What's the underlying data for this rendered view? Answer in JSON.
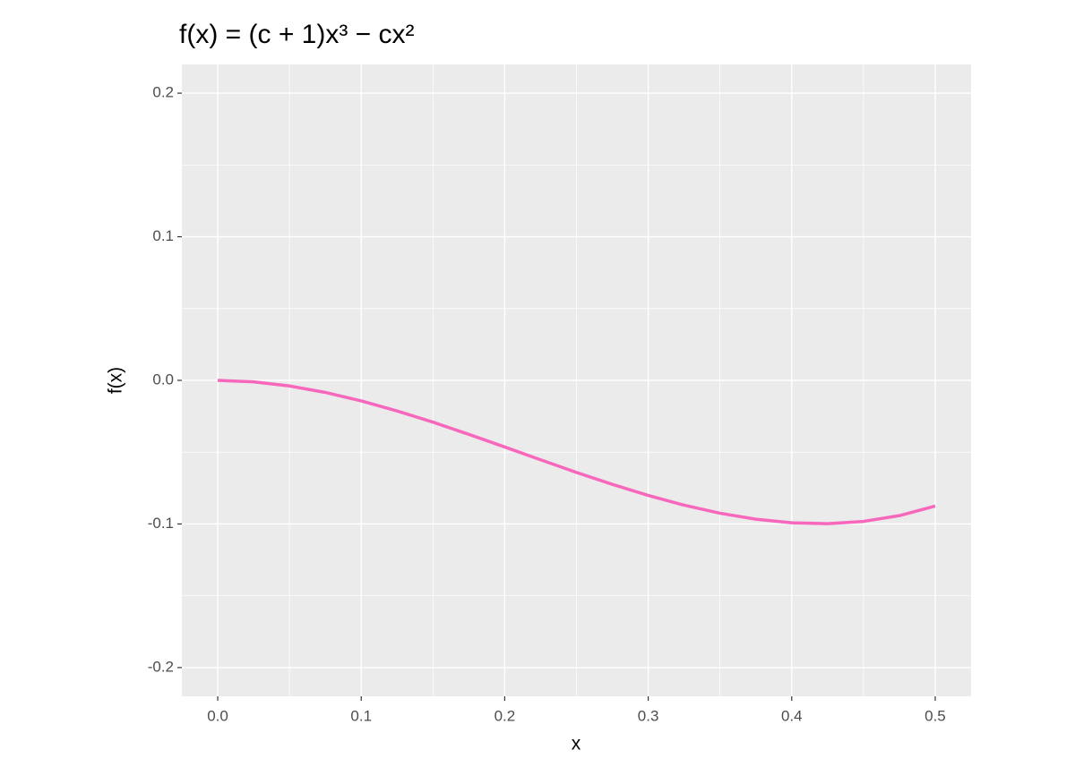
{
  "chart_data": {
    "type": "line",
    "title": "f(x) = (c + 1)x³ − cx²",
    "x_label": "x",
    "y_label": "f(x)",
    "x": [
      0,
      0.025,
      0.05,
      0.075,
      0.1,
      0.125,
      0.15,
      0.175,
      0.2,
      0.225,
      0.25,
      0.275,
      0.3,
      0.325,
      0.35,
      0.375,
      0.4,
      0.425,
      0.45,
      0.475,
      0.5
    ],
    "series": [
      {
        "color": "#f768bd",
        "values": [
          0,
          -0.001,
          -0.0039,
          -0.0084,
          -0.0143,
          -0.0213,
          -0.0291,
          -0.0376,
          -0.0464,
          -0.0553,
          -0.0641,
          -0.0724,
          -0.0801,
          -0.0869,
          -0.0925,
          -0.0967,
          -0.0992,
          -0.0998,
          -0.0982,
          -0.0942,
          -0.0875
        ]
      }
    ],
    "xlim": [
      -0.025,
      0.525
    ],
    "ylim": [
      -0.22,
      0.22
    ],
    "xticks": [
      {
        "value": 0,
        "label": "0.0"
      },
      0.1,
      0.2,
      0.3,
      0.4,
      0.5
    ],
    "yticks": [
      -0.2,
      -0.1,
      {
        "value": 0,
        "label": "0.0"
      },
      0.1,
      0.2
    ],
    "grid": true
  }
}
